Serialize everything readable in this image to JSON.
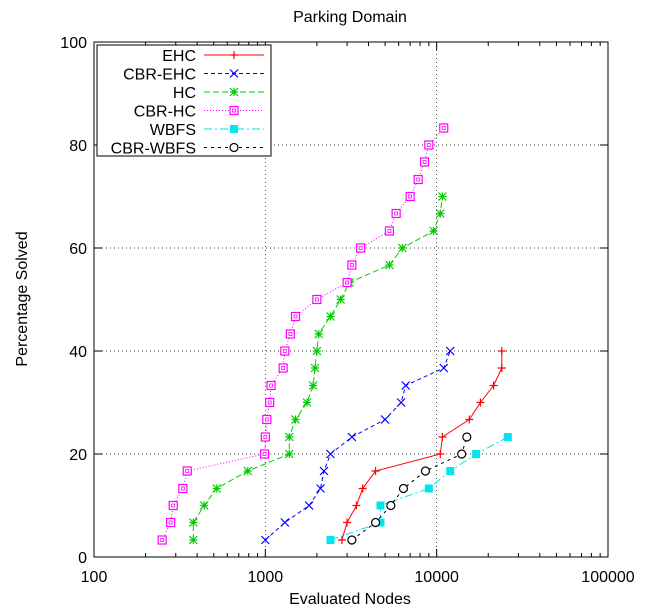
{
  "chart_data": {
    "type": "line",
    "title": "Parking Domain",
    "xlabel": "Evaluated Nodes",
    "ylabel": "Percentage Solved",
    "xscale": "log",
    "xlim": [
      100,
      100000
    ],
    "ylim": [
      0,
      100
    ],
    "x_ticks": [
      100,
      1000,
      10000,
      100000
    ],
    "x_tick_labels": [
      "100",
      "1000",
      "10000",
      "100000"
    ],
    "y_ticks": [
      0,
      20,
      40,
      60,
      80,
      100
    ],
    "y_tick_labels": [
      "0",
      "20",
      "40",
      "60",
      "80",
      "100"
    ],
    "grid": "dotted at major ticks",
    "legend_position": "top-left",
    "series": [
      {
        "name": "EHC",
        "color": "#ff0000",
        "marker": "plus",
        "dash": "solid",
        "points": [
          [
            2800,
            3.3
          ],
          [
            3000,
            6.7
          ],
          [
            3400,
            10
          ],
          [
            3700,
            13.3
          ],
          [
            4400,
            16.7
          ],
          [
            10500,
            20
          ],
          [
            10800,
            23.3
          ],
          [
            15500,
            26.7
          ],
          [
            18000,
            30
          ],
          [
            21500,
            33.3
          ],
          [
            24000,
            36.7
          ],
          [
            24000,
            40
          ]
        ]
      },
      {
        "name": "CBR-EHC",
        "color": "#0000ff",
        "marker": "x",
        "dash": "4,3",
        "points": [
          [
            1000,
            3.3
          ],
          [
            1300,
            6.7
          ],
          [
            1800,
            10
          ],
          [
            2100,
            13.3
          ],
          [
            2200,
            16.7
          ],
          [
            2400,
            20
          ],
          [
            3200,
            23.3
          ],
          [
            5000,
            26.7
          ],
          [
            6200,
            30
          ],
          [
            6600,
            33.3
          ],
          [
            11000,
            36.7
          ],
          [
            12000,
            40
          ]
        ]
      },
      {
        "name": "HC",
        "color": "#00cc00",
        "marker": "star",
        "dash": "6,3",
        "points": [
          [
            380,
            3.3
          ],
          [
            380,
            6.7
          ],
          [
            440,
            10
          ],
          [
            520,
            13.3
          ],
          [
            790,
            16.7
          ],
          [
            1380,
            20
          ],
          [
            1380,
            23.3
          ],
          [
            1500,
            26.7
          ],
          [
            1750,
            30
          ],
          [
            1900,
            33.3
          ],
          [
            1950,
            36.7
          ],
          [
            2000,
            40
          ],
          [
            2050,
            43.3
          ],
          [
            2400,
            46.7
          ],
          [
            2750,
            50
          ],
          [
            3100,
            53.3
          ],
          [
            5300,
            56.7
          ],
          [
            6300,
            60
          ],
          [
            9600,
            63.3
          ],
          [
            10500,
            66.7
          ],
          [
            10800,
            70
          ]
        ]
      },
      {
        "name": "CBR-HC",
        "color": "#ff00ff",
        "marker": "square-open",
        "dash": "1,2",
        "points": [
          [
            250,
            3.3
          ],
          [
            280,
            6.7
          ],
          [
            290,
            10
          ],
          [
            330,
            13.3
          ],
          [
            350,
            16.7
          ],
          [
            990,
            20
          ],
          [
            1000,
            23.3
          ],
          [
            1020,
            26.7
          ],
          [
            1060,
            30
          ],
          [
            1080,
            33.3
          ],
          [
            1270,
            36.7
          ],
          [
            1300,
            40
          ],
          [
            1400,
            43.3
          ],
          [
            1500,
            46.7
          ],
          [
            2000,
            50
          ],
          [
            3000,
            53.3
          ],
          [
            3200,
            56.7
          ],
          [
            3600,
            60
          ],
          [
            5300,
            63.3
          ],
          [
            5800,
            66.7
          ],
          [
            7000,
            70
          ],
          [
            7800,
            73.3
          ],
          [
            8500,
            76.7
          ],
          [
            9000,
            80
          ],
          [
            11000,
            83.3
          ]
        ]
      },
      {
        "name": "WBFS",
        "color": "#00e5ee",
        "marker": "square-filled",
        "dash": "8,3,2,3",
        "points": [
          [
            2400,
            3.3
          ],
          [
            4700,
            6.7
          ],
          [
            4700,
            10
          ],
          [
            9000,
            13.3
          ],
          [
            12000,
            16.7
          ],
          [
            17000,
            20
          ],
          [
            26000,
            23.3
          ]
        ]
      },
      {
        "name": "CBR-WBFS",
        "color": "#000000",
        "marker": "circle",
        "dash": "3,4",
        "points": [
          [
            3200,
            3.3
          ],
          [
            4400,
            6.7
          ],
          [
            5400,
            10
          ],
          [
            6400,
            13.3
          ],
          [
            8600,
            16.7
          ],
          [
            14000,
            20
          ],
          [
            15000,
            23.3
          ]
        ]
      }
    ]
  }
}
